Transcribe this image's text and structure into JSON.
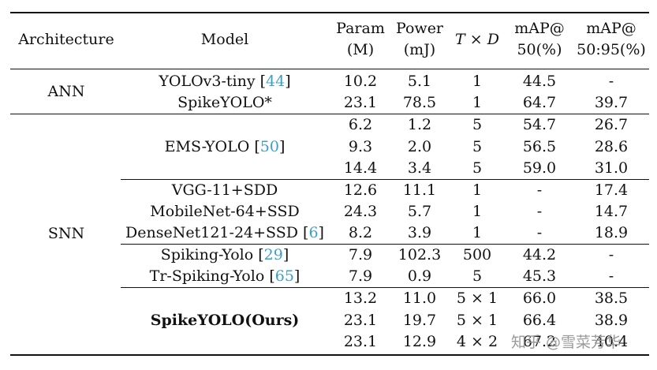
{
  "header": {
    "architecture": "Architecture",
    "model": "Model",
    "param_1": "Param",
    "param_2": "(M)",
    "power_1": "Power",
    "power_2": "(mJ)",
    "td_t": "T",
    "td_x": "×",
    "td_d": "D",
    "map50_1": "mAP@",
    "map50_2": "50(%)",
    "map5095_1": "mAP@",
    "map5095_2": "50:95(%)"
  },
  "groups": {
    "ann": "ANN",
    "snn": "SNN"
  },
  "models": {
    "yolov3": "YOLOv3-tiny",
    "yolov3_cite": "44",
    "spikeyolo_star": "SpikeYOLO*",
    "emsyolo": "EMS-YOLO",
    "emsyolo_cite": "50",
    "vgg": "VGG-11+SDD",
    "mobilenet": "MobileNet-64+SSD",
    "densenet": "DenseNet121-24+SSD",
    "densenet_cite": "6",
    "spikingyolo": "Spiking-Yolo",
    "spikingyolo_cite": "29",
    "trspiking": "Tr-Spiking-Yolo",
    "trspiking_cite": "65",
    "ours": "SpikeYOLO(Ours)"
  },
  "rows": [
    {
      "param": "10.2",
      "power": "5.1",
      "td": "1",
      "m50": "44.5",
      "m5095": "-"
    },
    {
      "param": "23.1",
      "power": "78.5",
      "td": "1",
      "m50": "64.7",
      "m5095": "39.7"
    },
    {
      "param": "6.2",
      "power": "1.2",
      "td": "5",
      "m50": "54.7",
      "m5095": "26.7"
    },
    {
      "param": "9.3",
      "power": "2.0",
      "td": "5",
      "m50": "56.5",
      "m5095": "28.6"
    },
    {
      "param": "14.4",
      "power": "3.4",
      "td": "5",
      "m50": "59.0",
      "m5095": "31.0"
    },
    {
      "param": "12.6",
      "power": "11.1",
      "td": "1",
      "m50": "-",
      "m5095": "17.4"
    },
    {
      "param": "24.3",
      "power": "5.7",
      "td": "1",
      "m50": "-",
      "m5095": "14.7"
    },
    {
      "param": "8.2",
      "power": "3.9",
      "td": "1",
      "m50": "-",
      "m5095": "18.9"
    },
    {
      "param": "7.9",
      "power": "102.3",
      "td": "500",
      "m50": "44.2",
      "m5095": "-"
    },
    {
      "param": "7.9",
      "power": "0.9",
      "td": "5",
      "m50": "45.3",
      "m5095": "-"
    },
    {
      "param": "13.2",
      "power": "11.0",
      "td": "5 × 1",
      "m50": "66.0",
      "m5095": "38.5"
    },
    {
      "param": "23.1",
      "power": "19.7",
      "td": "5 × 1",
      "m50": "66.4",
      "m5095": "38.9"
    },
    {
      "param": "23.1",
      "power": "12.9",
      "td": "4 × 2",
      "m50": "67.2",
      "m5095": "40.4"
    }
  ],
  "watermark": "知乎 @雪菜芳华"
}
